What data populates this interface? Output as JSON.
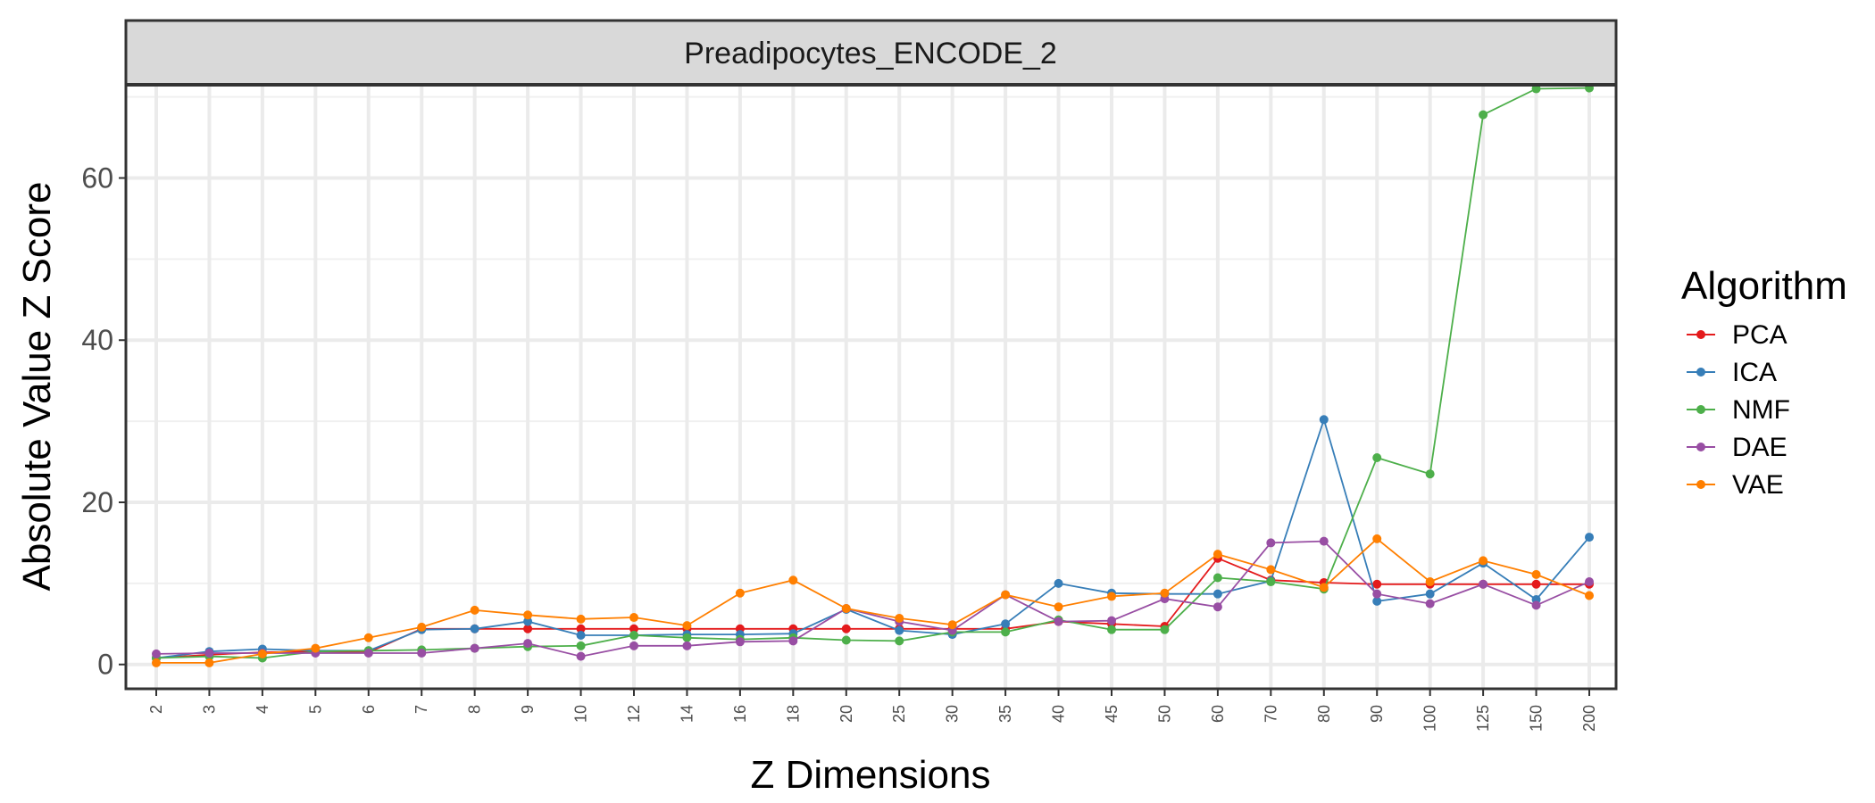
{
  "chart_data": {
    "type": "line",
    "facet_title": "Preadipocytes_ENCODE_2",
    "xlabel": "Z Dimensions",
    "ylabel": "Absolute Value Z Score",
    "legend_title": "Algorithm",
    "legend_position": "right",
    "grid": true,
    "ylim": [
      -3,
      71.5
    ],
    "yticks": [
      0,
      20,
      40,
      60
    ],
    "x": [
      "2",
      "3",
      "4",
      "5",
      "6",
      "7",
      "8",
      "9",
      "10",
      "12",
      "14",
      "16",
      "18",
      "20",
      "25",
      "30",
      "35",
      "40",
      "45",
      "50",
      "60",
      "70",
      "80",
      "90",
      "100",
      "125",
      "150",
      "200"
    ],
    "series": [
      {
        "name": "PCA",
        "color": "#e41a1c",
        "values": [
          0.8,
          1.2,
          1.5,
          1.6,
          1.5,
          4.4,
          4.4,
          4.4,
          4.4,
          4.4,
          4.4,
          4.4,
          4.4,
          4.4,
          4.4,
          4.4,
          4.4,
          5.3,
          5.0,
          4.7,
          13.1,
          10.4,
          10.1,
          9.9,
          9.9,
          9.9,
          9.9,
          9.9
        ]
      },
      {
        "name": "ICA",
        "color": "#377eb8",
        "values": [
          0.8,
          1.6,
          1.9,
          1.7,
          1.7,
          4.3,
          4.4,
          5.3,
          3.6,
          3.6,
          3.7,
          3.7,
          3.8,
          6.8,
          4.2,
          3.7,
          5.0,
          10.0,
          8.8,
          8.7,
          8.7,
          10.3,
          30.2,
          7.8,
          8.7,
          12.5,
          8.0,
          15.7
        ]
      },
      {
        "name": "NMF",
        "color": "#4daf4a",
        "values": [
          0.8,
          1.0,
          0.8,
          1.6,
          1.7,
          1.8,
          2.0,
          2.2,
          2.3,
          3.6,
          3.3,
          3.1,
          3.3,
          3.0,
          2.9,
          4.0,
          4.0,
          5.5,
          4.3,
          4.3,
          10.7,
          10.2,
          9.3,
          25.5,
          23.5,
          67.8,
          71.0,
          71.1
        ]
      },
      {
        "name": "DAE",
        "color": "#984ea3",
        "values": [
          1.3,
          1.4,
          1.4,
          1.4,
          1.4,
          1.4,
          2.0,
          2.6,
          1.0,
          2.3,
          2.3,
          2.8,
          2.9,
          6.9,
          5.3,
          4.2,
          8.6,
          5.3,
          5.4,
          8.1,
          7.1,
          15.0,
          15.2,
          8.7,
          7.5,
          9.9,
          7.3,
          10.2
        ]
      },
      {
        "name": "VAE",
        "color": "#ff7f00",
        "values": [
          0.2,
          0.2,
          1.3,
          2.0,
          3.3,
          4.6,
          6.7,
          6.1,
          5.6,
          5.8,
          4.8,
          8.8,
          10.4,
          6.9,
          5.7,
          4.9,
          8.6,
          7.1,
          8.4,
          8.8,
          13.6,
          11.7,
          9.5,
          15.5,
          10.2,
          12.8,
          11.1,
          8.5
        ]
      }
    ]
  }
}
